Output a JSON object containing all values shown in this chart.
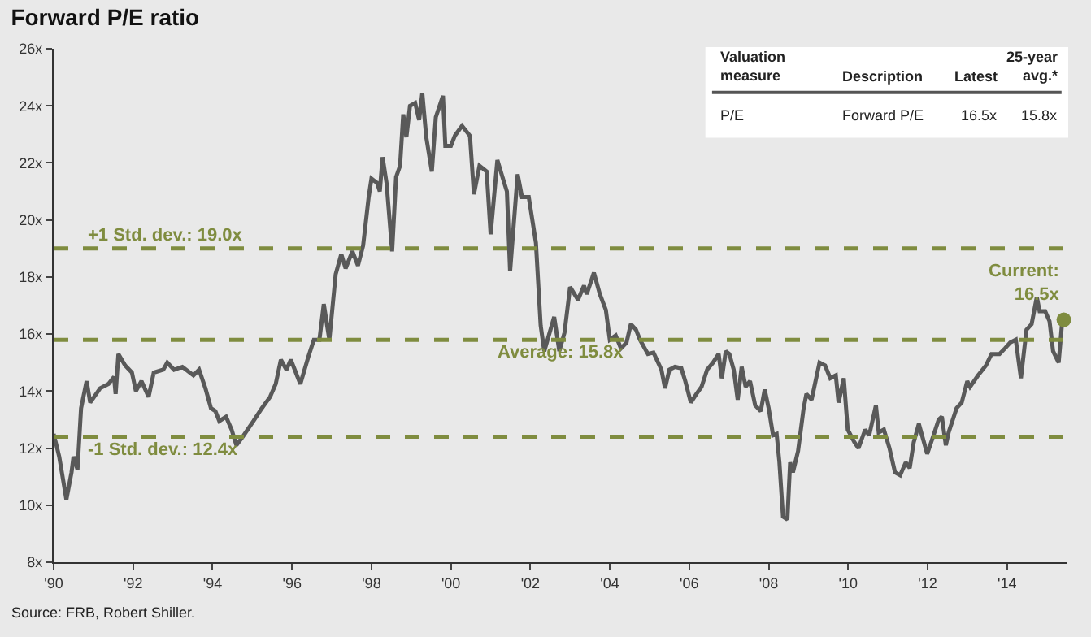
{
  "chart_data": {
    "type": "line",
    "title": "Forward P/E ratio",
    "x": [
      1990.0,
      1990.14,
      1990.32,
      1990.45,
      1990.5,
      1990.6,
      1990.69,
      1990.83,
      1990.92,
      1991.17,
      1991.38,
      1991.52,
      1991.56,
      1991.63,
      1991.8,
      1991.97,
      1992.07,
      1992.21,
      1992.39,
      1992.52,
      1992.76,
      1992.86,
      1993.03,
      1993.24,
      1993.52,
      1993.66,
      1993.82,
      1993.96,
      1994.07,
      1994.17,
      1994.34,
      1994.48,
      1994.6,
      1994.76,
      1995.03,
      1995.24,
      1995.45,
      1995.59,
      1995.72,
      1995.86,
      1995.97,
      1996.21,
      1996.41,
      1996.55,
      1996.69,
      1996.8,
      1996.94,
      1997.1,
      1997.24,
      1997.35,
      1997.52,
      1997.66,
      1997.79,
      1997.93,
      1998.0,
      1998.14,
      1998.21,
      1998.28,
      1998.38,
      1998.52,
      1998.62,
      1998.72,
      1998.8,
      1998.88,
      1998.97,
      1999.1,
      1999.2,
      1999.28,
      1999.38,
      1999.52,
      1999.62,
      1999.8,
      1999.86,
      2000.0,
      2000.1,
      2000.28,
      2000.48,
      2000.58,
      2000.72,
      2000.9,
      2001.0,
      2001.17,
      2001.31,
      2001.41,
      2001.49,
      2001.68,
      2001.79,
      2001.96,
      2002.14,
      2002.26,
      2002.35,
      2002.6,
      2002.73,
      2002.86,
      2003.0,
      2003.2,
      2003.35,
      2003.42,
      2003.6,
      2003.75,
      2003.9,
      2004.0,
      2004.15,
      2004.28,
      2004.42,
      2004.53,
      2004.66,
      2004.76,
      2004.96,
      2005.1,
      2005.3,
      2005.39,
      2005.5,
      2005.64,
      2005.8,
      2005.9,
      2006.04,
      2006.18,
      2006.31,
      2006.45,
      2006.6,
      2006.74,
      2006.82,
      2006.92,
      2007.01,
      2007.12,
      2007.22,
      2007.32,
      2007.42,
      2007.53,
      2007.66,
      2007.8,
      2007.9,
      2008.0,
      2008.11,
      2008.2,
      2008.27,
      2008.36,
      2008.47,
      2008.54,
      2008.61,
      2008.74,
      2008.88,
      2008.95,
      2009.08,
      2009.28,
      2009.42,
      2009.55,
      2009.69,
      2009.76,
      2009.89,
      2009.99,
      2010.16,
      2010.26,
      2010.43,
      2010.53,
      2010.7,
      2010.77,
      2010.9,
      2011.04,
      2011.18,
      2011.31,
      2011.45,
      2011.55,
      2011.65,
      2011.78,
      2011.88,
      2011.99,
      2012.09,
      2012.28,
      2012.36,
      2012.46,
      2012.53,
      2012.73,
      2012.86,
      2013.0,
      2013.07,
      2013.27,
      2013.47,
      2013.61,
      2013.81,
      2013.95,
      2014.08,
      2014.22,
      2014.35,
      2014.49,
      2014.62,
      2014.75,
      2014.82,
      2014.96,
      2015.07,
      2015.16,
      2015.3,
      2015.39,
      2015.43
    ],
    "series": [
      {
        "color": "#595959",
        "marker": "none",
        "values": [
          12.5,
          11.7,
          10.2,
          11.15,
          11.7,
          11.25,
          13.4,
          14.35,
          13.6,
          14.1,
          14.25,
          14.5,
          13.9,
          15.3,
          14.9,
          14.65,
          14.0,
          14.35,
          13.8,
          14.65,
          14.75,
          15.0,
          14.75,
          14.85,
          14.55,
          14.75,
          14.1,
          13.4,
          13.3,
          12.95,
          13.1,
          12.65,
          12.1,
          12.4,
          12.95,
          13.4,
          13.8,
          14.25,
          15.1,
          14.75,
          15.1,
          14.25,
          15.2,
          15.8,
          15.8,
          17.05,
          15.8,
          18.1,
          18.8,
          18.3,
          18.9,
          18.4,
          19.1,
          20.8,
          21.45,
          21.3,
          21.0,
          22.2,
          21.3,
          18.9,
          21.5,
          21.9,
          23.7,
          22.9,
          24.0,
          24.1,
          23.5,
          24.45,
          22.9,
          21.7,
          23.6,
          24.35,
          22.6,
          22.6,
          22.95,
          23.3,
          22.95,
          20.9,
          21.9,
          21.7,
          19.5,
          22.1,
          21.45,
          21.0,
          18.2,
          21.6,
          20.8,
          20.8,
          19.2,
          16.3,
          15.4,
          16.6,
          15.4,
          16.05,
          17.65,
          17.2,
          17.7,
          17.4,
          18.15,
          17.4,
          16.85,
          15.8,
          15.95,
          15.5,
          15.7,
          16.35,
          16.15,
          15.8,
          15.3,
          15.35,
          14.75,
          14.1,
          14.75,
          14.85,
          14.8,
          14.35,
          13.6,
          13.9,
          14.15,
          14.75,
          15.0,
          15.3,
          14.45,
          15.4,
          15.3,
          14.75,
          13.7,
          14.85,
          14.15,
          14.35,
          13.5,
          13.3,
          14.05,
          13.4,
          12.45,
          12.5,
          11.5,
          9.6,
          9.5,
          11.5,
          11.15,
          11.9,
          13.4,
          13.9,
          13.7,
          15.0,
          14.9,
          14.45,
          14.55,
          13.6,
          14.45,
          12.65,
          12.2,
          12.0,
          12.65,
          12.45,
          13.5,
          12.55,
          12.65,
          12.0,
          11.15,
          11.05,
          11.5,
          11.3,
          12.2,
          12.85,
          12.35,
          11.8,
          12.2,
          13.0,
          13.1,
          12.1,
          12.55,
          13.4,
          13.6,
          14.35,
          14.15,
          14.55,
          14.9,
          15.3,
          15.3,
          15.5,
          15.7,
          15.8,
          14.45,
          16.15,
          16.35,
          17.3,
          16.8,
          16.8,
          16.45,
          15.4,
          15.0,
          16.45,
          16.5
        ]
      },
      {
        "type": "scatter",
        "marker": "circle",
        "color": "#7f8c3f",
        "x": [
          2015.43
        ],
        "values": [
          16.5
        ]
      }
    ],
    "xlim": [
      1990,
      2015.5
    ],
    "ylim": [
      8,
      26
    ],
    "xticks": [
      {
        "value": 1990,
        "label": "'90"
      },
      {
        "value": 1992,
        "label": "'92"
      },
      {
        "value": 1994,
        "label": "'94"
      },
      {
        "value": 1996,
        "label": "'96"
      },
      {
        "value": 1998,
        "label": "'98"
      },
      {
        "value": 2000,
        "label": "'00"
      },
      {
        "value": 2002,
        "label": "'02"
      },
      {
        "value": 2004,
        "label": "'04"
      },
      {
        "value": 2006,
        "label": "'06"
      },
      {
        "value": 2008,
        "label": "'08"
      },
      {
        "value": 2010,
        "label": "'10"
      },
      {
        "value": 2012,
        "label": "'12"
      },
      {
        "value": 2014,
        "label": "'14"
      }
    ],
    "yticks": [
      {
        "value": 8,
        "label": "8x"
      },
      {
        "value": 10,
        "label": "10x"
      },
      {
        "value": 12,
        "label": "12x"
      },
      {
        "value": 14,
        "label": "14x"
      },
      {
        "value": 16,
        "label": "16x"
      },
      {
        "value": 18,
        "label": "18x"
      },
      {
        "value": 20,
        "label": "20x"
      },
      {
        "value": 22,
        "label": "22x"
      },
      {
        "value": 24,
        "label": "24x"
      },
      {
        "value": 26,
        "label": "26x"
      }
    ],
    "ref_lines": [
      {
        "axis": "y",
        "value": 19.0,
        "label": "+1 Std. dev.: 19.0x",
        "color": "#7f8c3f",
        "line_style": "dashed"
      },
      {
        "axis": "y",
        "value": 15.8,
        "label": "Average: 15.8x",
        "color": "#7f8c3f",
        "line_style": "dashed"
      },
      {
        "axis": "y",
        "value": 12.4,
        "label": "-1 Std. dev.: 12.4x",
        "color": "#7f8c3f",
        "line_style": "dashed"
      }
    ],
    "annotations": [
      "Valuation\nmeasure",
      "Description",
      "Latest",
      "25-year\navg.*",
      "P/E",
      "Forward P/E",
      "16.5x",
      "15.8x",
      {
        "text": "Current:\n16.5x",
        "x": 2015.43,
        "y": 16.5
      },
      "Source: FRB, Robert Shiller."
    ],
    "grid": false,
    "line_style": "solid"
  }
}
